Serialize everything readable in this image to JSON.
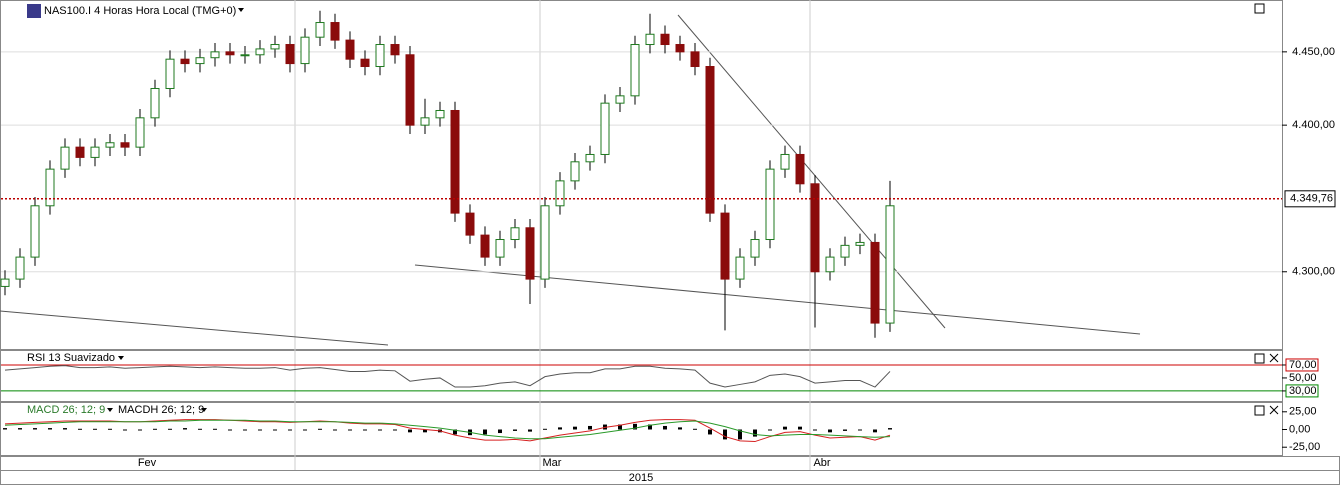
{
  "chart_data": {
    "type": "candlestick",
    "title": "NAS100.I 4 Horas Hora Local (TMG+0)",
    "up_color": "#1f7a1f",
    "down_color": "#8b0b0b",
    "ohlc": {
      "open": [
        4290,
        4295,
        4310,
        4345,
        4370,
        4385,
        4378,
        4385,
        4388,
        4385,
        4405,
        4425,
        4445,
        4442,
        4446,
        4450,
        4448,
        4448,
        4452,
        4455,
        4442,
        4460,
        4470,
        4458,
        4445,
        4440,
        4455,
        4448,
        4400,
        4405,
        4410,
        4340,
        4325,
        4310,
        4322,
        4330,
        4295,
        4345,
        4362,
        4375,
        4380,
        4415,
        4420,
        4455,
        4462,
        4455,
        4450,
        4440,
        4340,
        4295,
        4310,
        4322,
        4370,
        4380,
        4360,
        4300,
        4310,
        4318,
        4320,
        4265
      ],
      "high": [
        4301,
        4316,
        4351,
        4376,
        4391,
        4391,
        4391,
        4394,
        4394,
        4411,
        4431,
        4451,
        4451,
        4452,
        4456,
        4456,
        4454,
        4458,
        4461,
        4461,
        4466,
        4478,
        4476,
        4464,
        4451,
        4461,
        4461,
        4454,
        4418,
        4416,
        4416,
        4346,
        4331,
        4328,
        4336,
        4336,
        4351,
        4368,
        4381,
        4386,
        4421,
        4426,
        4461,
        4476,
        4468,
        4461,
        4456,
        4446,
        4346,
        4316,
        4328,
        4376,
        4386,
        4386,
        4366,
        4316,
        4324,
        4326,
        4326,
        4362
      ],
      "low": [
        4284,
        4289,
        4304,
        4339,
        4364,
        4372,
        4372,
        4379,
        4379,
        4379,
        4399,
        4419,
        4436,
        4436,
        4440,
        4442,
        4442,
        4442,
        4446,
        4436,
        4436,
        4454,
        4452,
        4439,
        4434,
        4434,
        4442,
        4394,
        4394,
        4399,
        4334,
        4319,
        4304,
        4304,
        4316,
        4278,
        4289,
        4339,
        4356,
        4369,
        4374,
        4409,
        4414,
        4449,
        4449,
        4444,
        4434,
        4334,
        4260,
        4289,
        4304,
        4316,
        4364,
        4354,
        4262,
        4294,
        4304,
        4312,
        4255,
        4259
      ],
      "close": [
        4295,
        4310,
        4345,
        4370,
        4385,
        4378,
        4385,
        4388,
        4385,
        4405,
        4425,
        4445,
        4442,
        4446,
        4450,
        4448,
        4448,
        4452,
        4455,
        4442,
        4460,
        4470,
        4458,
        4445,
        4440,
        4455,
        4448,
        4400,
        4405,
        4410,
        4340,
        4325,
        4310,
        4322,
        4330,
        4295,
        4345,
        4362,
        4375,
        4380,
        4415,
        4420,
        4455,
        4462,
        4455,
        4450,
        4440,
        4340,
        4295,
        4310,
        4322,
        4370,
        4380,
        4360,
        4300,
        4310,
        4318,
        4320,
        4265,
        4345
      ]
    },
    "categories": [
      null,
      null,
      null,
      null,
      null,
      null,
      null,
      null,
      null,
      null,
      "Fev",
      null,
      null,
      null,
      null,
      null,
      null,
      null,
      null,
      null,
      null,
      null,
      null,
      null,
      null,
      null,
      null,
      null,
      null,
      null,
      null,
      null,
      null,
      null,
      null,
      null,
      null,
      "Mar",
      null,
      null,
      null,
      null,
      null,
      null,
      null,
      null,
      null,
      null,
      null,
      null,
      null,
      null,
      null,
      null,
      null,
      "Abr",
      null,
      null,
      null,
      null
    ],
    "x_label": "2015",
    "ylim": [
      4248,
      4484
    ],
    "yticks": [
      {
        "value": 4300,
        "label": "4.300,00"
      },
      {
        "value": 4400,
        "label": "4.400,00"
      },
      {
        "value": 4450,
        "label": "4.450,00"
      }
    ],
    "last_price": {
      "value": 4349.76,
      "label": "4.349,76"
    },
    "rsi": {
      "title": "RSI 13 Suavizado",
      "color": "#555555",
      "values": [
        62,
        64,
        66,
        68,
        69,
        66,
        66,
        67,
        65,
        66,
        67,
        68,
        67,
        66,
        67,
        66,
        65,
        65,
        66,
        62,
        65,
        66,
        63,
        60,
        60,
        62,
        61,
        45,
        48,
        50,
        36,
        36,
        38,
        42,
        44,
        38,
        52,
        56,
        58,
        58,
        64,
        64,
        68,
        68,
        65,
        64,
        62,
        42,
        36,
        40,
        44,
        54,
        56,
        52,
        42,
        44,
        46,
        46,
        36,
        60
      ],
      "ylim": [
        16,
        90
      ],
      "yticks": [
        {
          "value": 70,
          "label": "70,00"
        },
        {
          "value": 50,
          "label": "50,00"
        },
        {
          "value": 30,
          "label": "30,00"
        }
      ]
    },
    "macd": {
      "labels": [
        "MACD 26; 12; 9",
        "MACDH 26; 12; 9"
      ],
      "line_color": "#d62020",
      "signal_color": "#2a9a2a",
      "histogram_color": "#000000",
      "line": [
        8,
        9,
        10,
        11,
        12,
        12,
        12,
        12,
        11,
        11,
        12,
        13,
        14,
        14,
        14,
        13,
        12,
        11,
        11,
        10,
        11,
        12,
        11,
        9,
        8,
        8,
        7,
        2,
        0,
        -2,
        -8,
        -12,
        -15,
        -15,
        -14,
        -16,
        -12,
        -8,
        -5,
        -2,
        3,
        6,
        10,
        13,
        14,
        14,
        13,
        2,
        -10,
        -16,
        -17,
        -10,
        -4,
        -3,
        -8,
        -12,
        -11,
        -10,
        -15,
        -8
      ],
      "signal": [
        6,
        7,
        8,
        9,
        10,
        11,
        11,
        11,
        11,
        11,
        11,
        12,
        12,
        13,
        13,
        13,
        13,
        12,
        12,
        11,
        11,
        11,
        11,
        10,
        9,
        9,
        8,
        6,
        4,
        2,
        -1,
        -4,
        -8,
        -10,
        -12,
        -13,
        -13,
        -11,
        -9,
        -7,
        -4,
        -1,
        2,
        6,
        9,
        11,
        12,
        9,
        4,
        -2,
        -7,
        -9,
        -8,
        -7,
        -7,
        -8,
        -9,
        -10,
        -11,
        -10
      ],
      "histogram": [
        2,
        2,
        2,
        2,
        2,
        1,
        1,
        1,
        0,
        0,
        1,
        1,
        2,
        1,
        1,
        0,
        -1,
        -1,
        -1,
        -1,
        0,
        1,
        0,
        -1,
        -1,
        -1,
        -1,
        -4,
        -4,
        -4,
        -7,
        -8,
        -7,
        -5,
        -2,
        -3,
        1,
        3,
        4,
        5,
        7,
        7,
        8,
        7,
        5,
        3,
        1,
        -7,
        -14,
        -14,
        -10,
        -1,
        4,
        4,
        -1,
        -4,
        -2,
        0,
        -4,
        2
      ],
      "ylim": [
        -36,
        36
      ],
      "yticks": [
        {
          "value": 25,
          "label": "25,00"
        },
        {
          "value": 0,
          "label": "0,00"
        },
        {
          "value": -25,
          "label": "-25,00"
        }
      ]
    }
  }
}
